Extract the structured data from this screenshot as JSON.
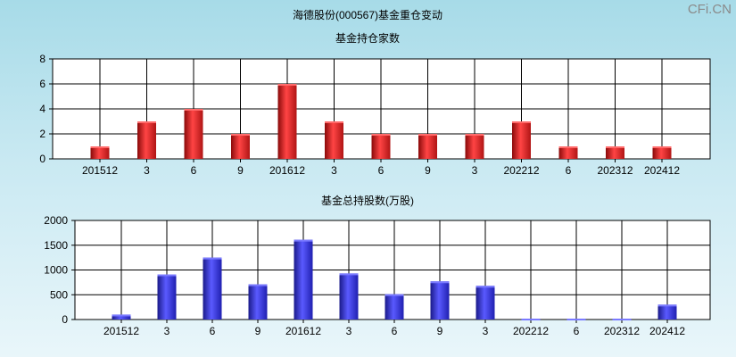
{
  "page_title": "海德股份(000567)基金重仓变动",
  "watermark": "CFi.CN",
  "chart_data": [
    {
      "type": "bar",
      "title": "基金持仓家数",
      "categories": [
        "201512",
        "3",
        "6",
        "9",
        "201612",
        "3",
        "6",
        "9",
        "3",
        "202212",
        "6",
        "202312",
        "202412"
      ],
      "values": [
        1,
        3,
        4,
        2,
        6,
        3,
        2,
        2,
        2,
        3,
        1,
        1,
        1
      ],
      "ylim": [
        0,
        8
      ],
      "yticks": [
        0,
        2,
        4,
        6,
        8
      ],
      "grid": true,
      "bar_color": "#e23a3a"
    },
    {
      "type": "bar",
      "title": "基金总持股数(万股)",
      "categories": [
        "201512",
        "3",
        "6",
        "9",
        "201612",
        "3",
        "6",
        "9",
        "3",
        "202212",
        "6",
        "202312",
        "202412"
      ],
      "values": [
        100,
        910,
        1250,
        710,
        1610,
        930,
        510,
        770,
        680,
        15,
        15,
        15,
        300
      ],
      "ylim": [
        0,
        2000
      ],
      "yticks": [
        0,
        500,
        1000,
        1500,
        2000
      ],
      "grid": true,
      "bar_color": "#3a3ae0"
    }
  ]
}
